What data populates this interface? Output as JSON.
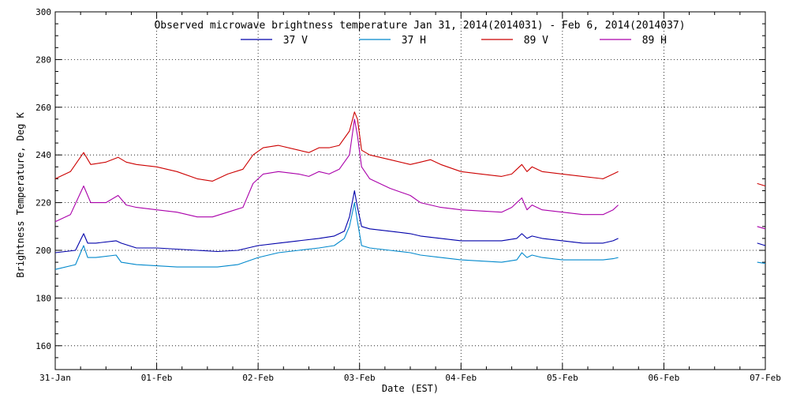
{
  "chart_data": {
    "type": "line",
    "title": "Observed microwave brightness temperature Jan 31, 2014(2014031) - Feb  6, 2014(2014037)",
    "xlabel": "Date (EST)",
    "ylabel": "Brightness Temperature, Deg K",
    "xlim": [
      0,
      7
    ],
    "ylim": [
      150,
      300
    ],
    "x_ticks": [
      {
        "value": 0,
        "label": "31-Jan"
      },
      {
        "value": 1,
        "label": "01-Feb"
      },
      {
        "value": 2,
        "label": "02-Feb"
      },
      {
        "value": 3,
        "label": "03-Feb"
      },
      {
        "value": 4,
        "label": "04-Feb"
      },
      {
        "value": 5,
        "label": "05-Feb"
      },
      {
        "value": 6,
        "label": "06-Feb"
      },
      {
        "value": 7,
        "label": "07-Feb"
      }
    ],
    "y_ticks": [
      160,
      180,
      200,
      220,
      240,
      260,
      280,
      300
    ],
    "grid": true,
    "legend_position": "top-center",
    "series": [
      {
        "name": "37 V",
        "color": "#0000aa",
        "segments": [
          [
            [
              0.0,
              199
            ],
            [
              0.2,
              200
            ],
            [
              0.28,
              207
            ],
            [
              0.32,
              203
            ],
            [
              0.4,
              203
            ],
            [
              0.6,
              204
            ],
            [
              0.65,
              203
            ],
            [
              0.8,
              201
            ],
            [
              1.0,
              201
            ],
            [
              1.2,
              200.5
            ],
            [
              1.4,
              200
            ],
            [
              1.6,
              199.5
            ],
            [
              1.8,
              200
            ],
            [
              2.0,
              202
            ],
            [
              2.2,
              203
            ],
            [
              2.4,
              204
            ],
            [
              2.6,
              205
            ],
            [
              2.75,
              206
            ],
            [
              2.85,
              208
            ],
            [
              2.9,
              214
            ],
            [
              2.95,
              225
            ],
            [
              2.98,
              218
            ],
            [
              3.02,
              210
            ],
            [
              3.1,
              209
            ],
            [
              3.3,
              208
            ],
            [
              3.5,
              207
            ],
            [
              3.6,
              206
            ],
            [
              3.8,
              205
            ],
            [
              4.0,
              204
            ],
            [
              4.2,
              204
            ],
            [
              4.4,
              204
            ],
            [
              4.55,
              205
            ],
            [
              4.6,
              207
            ],
            [
              4.65,
              205
            ],
            [
              4.7,
              206
            ],
            [
              4.8,
              205
            ],
            [
              5.0,
              204
            ],
            [
              5.2,
              203
            ],
            [
              5.4,
              203
            ],
            [
              5.5,
              204
            ],
            [
              5.55,
              205
            ]
          ],
          [
            [
              6.92,
              203
            ],
            [
              7.0,
              202
            ]
          ]
        ]
      },
      {
        "name": "37 H",
        "color": "#0088cc",
        "segments": [
          [
            [
              0.0,
              192
            ],
            [
              0.2,
              194
            ],
            [
              0.28,
              202
            ],
            [
              0.32,
              197
            ],
            [
              0.4,
              197
            ],
            [
              0.6,
              198
            ],
            [
              0.65,
              195
            ],
            [
              0.8,
              194
            ],
            [
              1.0,
              193.5
            ],
            [
              1.2,
              193
            ],
            [
              1.4,
              193
            ],
            [
              1.6,
              193
            ],
            [
              1.8,
              194
            ],
            [
              2.0,
              197
            ],
            [
              2.2,
              199
            ],
            [
              2.4,
              200
            ],
            [
              2.6,
              201
            ],
            [
              2.75,
              202
            ],
            [
              2.85,
              205
            ],
            [
              2.9,
              210
            ],
            [
              2.95,
              220
            ],
            [
              2.98,
              212
            ],
            [
              3.02,
              202
            ],
            [
              3.1,
              201
            ],
            [
              3.3,
              200
            ],
            [
              3.5,
              199
            ],
            [
              3.6,
              198
            ],
            [
              3.8,
              197
            ],
            [
              4.0,
              196
            ],
            [
              4.2,
              195.5
            ],
            [
              4.4,
              195
            ],
            [
              4.55,
              196
            ],
            [
              4.6,
              199
            ],
            [
              4.65,
              197
            ],
            [
              4.7,
              198
            ],
            [
              4.8,
              197
            ],
            [
              5.0,
              196
            ],
            [
              5.2,
              196
            ],
            [
              5.4,
              196
            ],
            [
              5.5,
              196.5
            ],
            [
              5.55,
              197
            ]
          ],
          [
            [
              6.92,
              195
            ],
            [
              7.0,
              194.5
            ]
          ]
        ]
      },
      {
        "name": "89 V",
        "color": "#cc0000",
        "segments": [
          [
            [
              0.0,
              230
            ],
            [
              0.15,
              233
            ],
            [
              0.28,
              241
            ],
            [
              0.35,
              236
            ],
            [
              0.5,
              237
            ],
            [
              0.62,
              239
            ],
            [
              0.7,
              237
            ],
            [
              0.8,
              236
            ],
            [
              1.0,
              235
            ],
            [
              1.2,
              233
            ],
            [
              1.4,
              230
            ],
            [
              1.55,
              229
            ],
            [
              1.7,
              232
            ],
            [
              1.85,
              234
            ],
            [
              1.95,
              240
            ],
            [
              2.05,
              243
            ],
            [
              2.2,
              244
            ],
            [
              2.4,
              242
            ],
            [
              2.5,
              241
            ],
            [
              2.6,
              243
            ],
            [
              2.7,
              243
            ],
            [
              2.8,
              244
            ],
            [
              2.9,
              250
            ],
            [
              2.95,
              258
            ],
            [
              2.98,
              255
            ],
            [
              3.02,
              242
            ],
            [
              3.1,
              240
            ],
            [
              3.3,
              238
            ],
            [
              3.5,
              236
            ],
            [
              3.6,
              237
            ],
            [
              3.7,
              238
            ],
            [
              3.8,
              236
            ],
            [
              4.0,
              233
            ],
            [
              4.2,
              232
            ],
            [
              4.4,
              231
            ],
            [
              4.5,
              232
            ],
            [
              4.55,
              234
            ],
            [
              4.6,
              236
            ],
            [
              4.65,
              233
            ],
            [
              4.7,
              235
            ],
            [
              4.8,
              233
            ],
            [
              5.0,
              232
            ],
            [
              5.2,
              231
            ],
            [
              5.4,
              230
            ],
            [
              5.5,
              232
            ],
            [
              5.55,
              233
            ]
          ],
          [
            [
              6.92,
              228
            ],
            [
              7.0,
              227
            ]
          ]
        ]
      },
      {
        "name": "89 H",
        "color": "#aa00aa",
        "segments": [
          [
            [
              0.0,
              212
            ],
            [
              0.15,
              215
            ],
            [
              0.28,
              227
            ],
            [
              0.35,
              220
            ],
            [
              0.5,
              220
            ],
            [
              0.62,
              223
            ],
            [
              0.7,
              219
            ],
            [
              0.8,
              218
            ],
            [
              1.0,
              217
            ],
            [
              1.2,
              216
            ],
            [
              1.4,
              214
            ],
            [
              1.55,
              214
            ],
            [
              1.7,
              216
            ],
            [
              1.85,
              218
            ],
            [
              1.95,
              228
            ],
            [
              2.05,
              232
            ],
            [
              2.2,
              233
            ],
            [
              2.4,
              232
            ],
            [
              2.5,
              231
            ],
            [
              2.6,
              233
            ],
            [
              2.7,
              232
            ],
            [
              2.8,
              234
            ],
            [
              2.9,
              240
            ],
            [
              2.95,
              255
            ],
            [
              2.98,
              248
            ],
            [
              3.02,
              235
            ],
            [
              3.1,
              230
            ],
            [
              3.3,
              226
            ],
            [
              3.5,
              223
            ],
            [
              3.6,
              220
            ],
            [
              3.8,
              218
            ],
            [
              4.0,
              217
            ],
            [
              4.2,
              216.5
            ],
            [
              4.4,
              216
            ],
            [
              4.5,
              218
            ],
            [
              4.55,
              220
            ],
            [
              4.6,
              222
            ],
            [
              4.65,
              217
            ],
            [
              4.7,
              219
            ],
            [
              4.8,
              217
            ],
            [
              5.0,
              216
            ],
            [
              5.2,
              215
            ],
            [
              5.4,
              215
            ],
            [
              5.5,
              217
            ],
            [
              5.55,
              219
            ]
          ],
          [
            [
              6.92,
              210
            ],
            [
              7.0,
              209
            ]
          ]
        ]
      }
    ]
  }
}
